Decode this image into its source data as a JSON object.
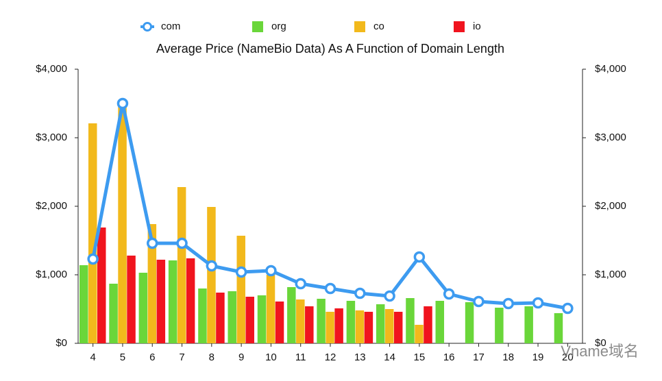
{
  "chart_data": {
    "type": "bar",
    "title": "Average Price (NameBio Data) As A Function of Domain Length",
    "categories": [
      "4",
      "5",
      "6",
      "7",
      "8",
      "9",
      "10",
      "11",
      "12",
      "13",
      "14",
      "15",
      "16",
      "17",
      "18",
      "19",
      "20"
    ],
    "series": [
      {
        "name": "com",
        "type": "line",
        "color": "#3d9bf0",
        "values": [
          1230,
          3500,
          1460,
          1460,
          1130,
          1040,
          1060,
          870,
          800,
          730,
          690,
          1260,
          720,
          610,
          580,
          590,
          510
        ]
      },
      {
        "name": "org",
        "color": "#6ad63a",
        "values": [
          1140,
          870,
          1030,
          1210,
          800,
          760,
          700,
          820,
          650,
          620,
          570,
          660,
          620,
          600,
          520,
          540,
          440
        ]
      },
      {
        "name": "co",
        "color": "#f2b91c",
        "values": [
          3210,
          3480,
          1740,
          2280,
          1990,
          1570,
          1000,
          640,
          460,
          480,
          500,
          270,
          null,
          null,
          null,
          null,
          null
        ]
      },
      {
        "name": "io",
        "color": "#f0141e",
        "values": [
          1690,
          1280,
          1220,
          1240,
          740,
          680,
          610,
          540,
          510,
          460,
          460,
          540,
          null,
          null,
          null,
          null,
          null
        ]
      }
    ],
    "ylim": [
      0,
      4000
    ],
    "yticks": [
      {
        "value": 0,
        "label": "$0"
      },
      {
        "value": 1000,
        "label": "$1,000"
      },
      {
        "value": 2000,
        "label": "$2,000"
      },
      {
        "value": 3000,
        "label": "$3,000"
      },
      {
        "value": 4000,
        "label": "$4,000"
      }
    ],
    "y2lim": [
      0,
      4000
    ],
    "y2ticks": [
      {
        "value": 0,
        "label": "$0"
      },
      {
        "value": 1000,
        "label": "$1,000"
      },
      {
        "value": 2000,
        "label": "$2,000"
      },
      {
        "value": 3000,
        "label": "$3,000"
      },
      {
        "value": 4000,
        "label": "$4,000"
      }
    ],
    "legend": "top",
    "watermark": "Vname域名"
  }
}
